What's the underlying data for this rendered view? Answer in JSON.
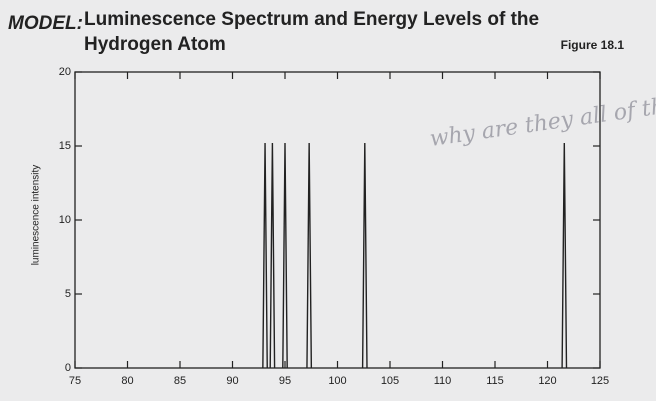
{
  "chart_data": {
    "type": "spectrum",
    "label": "MODEL:",
    "title": [
      "Luminescence Spectrum and Energy Levels of the",
      "Hydrogen Atom"
    ],
    "figure": "Figure 18.1",
    "y_label": "luminescence intensity",
    "annotation": "why are they all of the same",
    "x": [
      93.1,
      93.8,
      95.0,
      97.3,
      102.6,
      121.6
    ],
    "values": [
      15.2,
      15.2,
      15.2,
      15.2,
      15.2,
      15.2
    ],
    "color": "#222222",
    "xlim": [
      75,
      125
    ],
    "xticks": [
      75,
      80,
      85,
      90,
      95,
      100,
      105,
      110,
      115,
      120,
      125
    ],
    "ylim": [
      0,
      20
    ],
    "yticks": [
      0,
      5,
      10,
      15,
      20
    ]
  }
}
